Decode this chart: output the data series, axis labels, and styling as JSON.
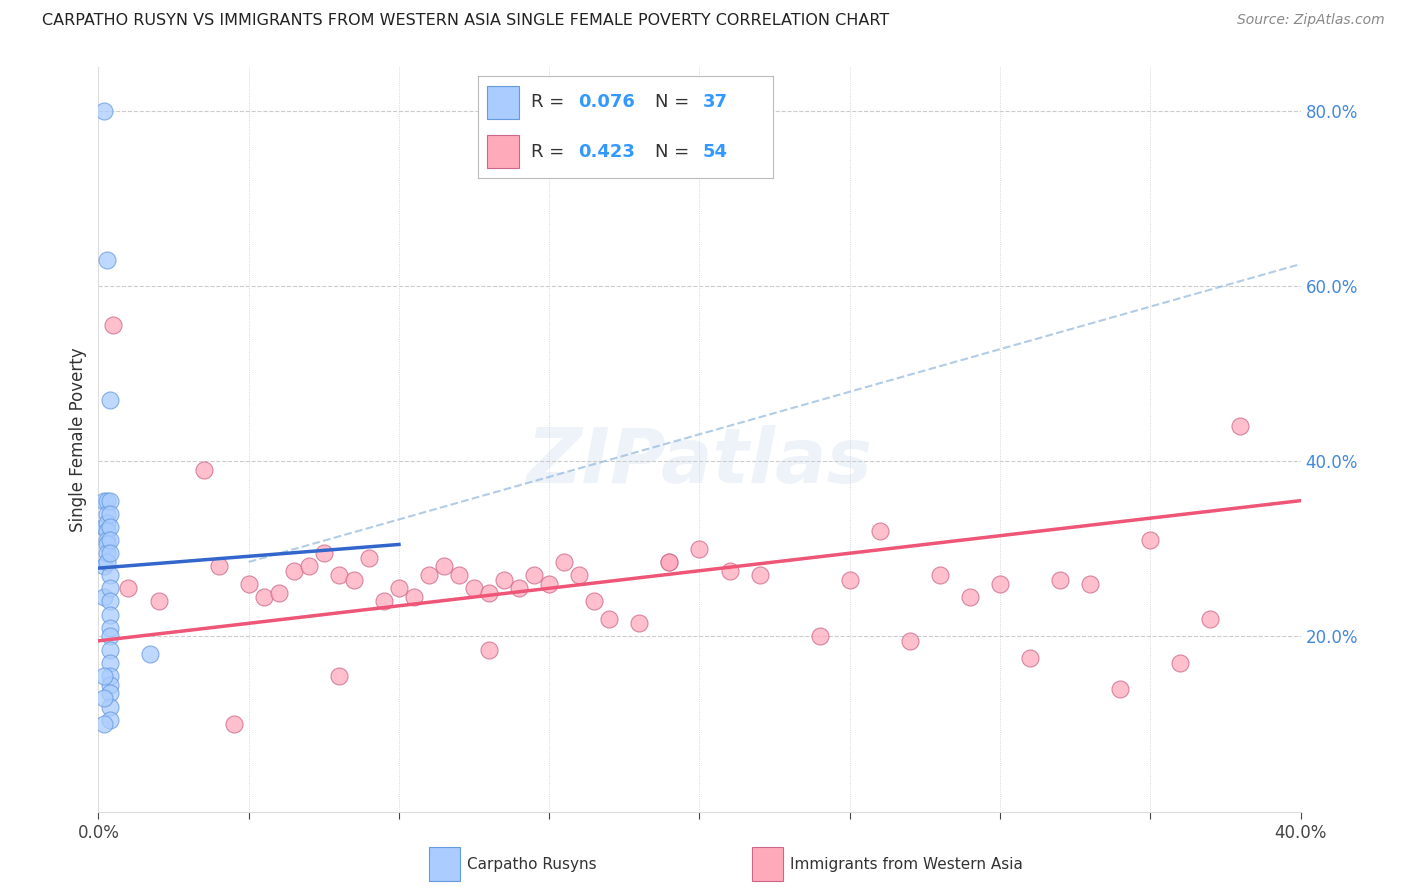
{
  "title": "CARPATHO RUSYN VS IMMIGRANTS FROM WESTERN ASIA SINGLE FEMALE POVERTY CORRELATION CHART",
  "source": "Source: ZipAtlas.com",
  "ylabel": "Single Female Poverty",
  "xlim": [
    0.0,
    0.4
  ],
  "ylim": [
    0.0,
    0.85
  ],
  "color_blue": "#aaccff",
  "color_blue_border": "#6699dd",
  "color_blue_line": "#3366cc",
  "color_blue_dashed": "#99bbdd",
  "color_pink": "#ffaabb",
  "color_pink_border": "#cc6688",
  "color_pink_line": "#ee5577",
  "background_color": "#ffffff",
  "grid_color": "#cccccc",
  "blue_scatter_x": [
    0.002,
    0.002,
    0.002,
    0.002,
    0.002,
    0.003,
    0.003,
    0.003,
    0.003,
    0.003,
    0.003,
    0.003,
    0.003,
    0.003,
    0.004,
    0.004,
    0.004,
    0.004,
    0.004,
    0.004,
    0.004,
    0.004,
    0.004,
    0.004,
    0.004,
    0.004,
    0.004,
    0.004,
    0.004,
    0.004,
    0.004,
    0.004,
    0.004,
    0.017,
    0.002,
    0.002,
    0.002
  ],
  "blue_scatter_y": [
    0.8,
    0.355,
    0.325,
    0.28,
    0.245,
    0.63,
    0.355,
    0.34,
    0.33,
    0.32,
    0.31,
    0.305,
    0.295,
    0.285,
    0.47,
    0.355,
    0.34,
    0.325,
    0.31,
    0.295,
    0.27,
    0.255,
    0.24,
    0.225,
    0.21,
    0.2,
    0.185,
    0.17,
    0.155,
    0.145,
    0.135,
    0.12,
    0.105,
    0.18,
    0.155,
    0.13,
    0.1
  ],
  "pink_scatter_x": [
    0.005,
    0.01,
    0.02,
    0.035,
    0.04,
    0.045,
    0.05,
    0.055,
    0.06,
    0.065,
    0.07,
    0.075,
    0.08,
    0.085,
    0.09,
    0.095,
    0.1,
    0.105,
    0.11,
    0.115,
    0.12,
    0.125,
    0.13,
    0.135,
    0.14,
    0.145,
    0.15,
    0.155,
    0.16,
    0.165,
    0.17,
    0.18,
    0.19,
    0.2,
    0.21,
    0.22,
    0.24,
    0.25,
    0.26,
    0.27,
    0.28,
    0.29,
    0.3,
    0.31,
    0.32,
    0.33,
    0.34,
    0.35,
    0.36,
    0.37,
    0.38,
    0.13,
    0.08,
    0.19
  ],
  "pink_scatter_y": [
    0.555,
    0.255,
    0.24,
    0.39,
    0.28,
    0.1,
    0.26,
    0.245,
    0.25,
    0.275,
    0.28,
    0.295,
    0.27,
    0.265,
    0.29,
    0.24,
    0.255,
    0.245,
    0.27,
    0.28,
    0.27,
    0.255,
    0.25,
    0.265,
    0.255,
    0.27,
    0.26,
    0.285,
    0.27,
    0.24,
    0.22,
    0.215,
    0.285,
    0.3,
    0.275,
    0.27,
    0.2,
    0.265,
    0.32,
    0.195,
    0.27,
    0.245,
    0.26,
    0.175,
    0.265,
    0.26,
    0.14,
    0.31,
    0.17,
    0.22,
    0.44,
    0.185,
    0.155,
    0.285
  ],
  "blue_line_x0": 0.0,
  "blue_line_y0": 0.278,
  "blue_line_x1": 0.1,
  "blue_line_y1": 0.305,
  "pink_line_x0": 0.0,
  "pink_line_y0": 0.195,
  "pink_line_x1": 0.4,
  "pink_line_y1": 0.355,
  "dashed_line_x0": 0.05,
  "dashed_line_y0": 0.285,
  "dashed_line_x1": 0.4,
  "dashed_line_y1": 0.625
}
